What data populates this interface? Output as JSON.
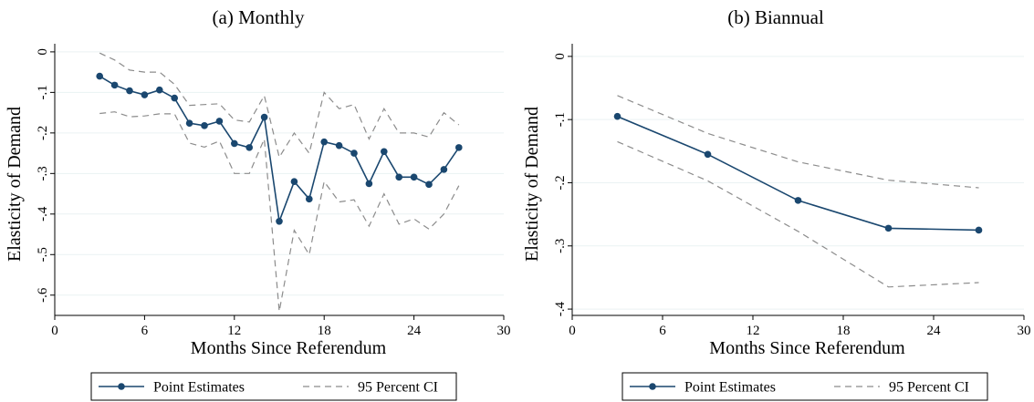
{
  "colors": {
    "series": "#1a476f",
    "ci": "#8c8c8c",
    "grid": "#eaf2f3",
    "axis": "#000000"
  },
  "chart_data": [
    {
      "type": "line",
      "title": "(a) Monthly",
      "xlabel": "Months Since Referendum",
      "ylabel": "Elasticity of Demand",
      "xlim": [
        0,
        30
      ],
      "ylim": [
        -0.65,
        0.02
      ],
      "xticks": [
        0,
        6,
        12,
        18,
        24,
        30
      ],
      "xtick_labels": [
        "0",
        "6",
        "12",
        "18",
        "24",
        "30"
      ],
      "yticks": [
        0,
        -0.1,
        -0.2,
        -0.3,
        -0.4,
        -0.5,
        -0.6
      ],
      "ytick_labels": [
        "0",
        "-.1",
        "-.2",
        "-.3",
        "-.4",
        "-.5",
        "-.6"
      ],
      "grid": true,
      "legend_position": "bottom",
      "legend": [
        "Point Estimates",
        "95 Percent CI"
      ],
      "x": [
        3,
        4,
        5,
        6,
        7,
        8,
        9,
        10,
        11,
        12,
        13,
        14,
        15,
        16,
        17,
        18,
        19,
        20,
        21,
        22,
        23,
        24,
        25,
        26,
        27
      ],
      "series": [
        {
          "name": "Point Estimates",
          "style": "solid-markers",
          "values": [
            -0.06,
            -0.082,
            -0.096,
            -0.106,
            -0.094,
            -0.114,
            -0.176,
            -0.182,
            -0.171,
            -0.226,
            -0.236,
            -0.161,
            -0.418,
            -0.32,
            -0.363,
            -0.222,
            -0.231,
            -0.25,
            -0.325,
            -0.246,
            -0.309,
            -0.309,
            -0.327,
            -0.29,
            -0.236
          ]
        },
        {
          "name": "95 Percent CI",
          "style": "dashed",
          "values": [
            -0.003,
            -0.02,
            -0.045,
            -0.05,
            -0.05,
            -0.08,
            -0.132,
            -0.13,
            -0.128,
            -0.168,
            -0.173,
            -0.108,
            -0.26,
            -0.2,
            -0.25,
            -0.1,
            -0.14,
            -0.13,
            -0.215,
            -0.14,
            -0.2,
            -0.2,
            -0.21,
            -0.15,
            -0.18
          ]
        },
        {
          "name": "95 Percent CI",
          "style": "dashed",
          "values": [
            -0.152,
            -0.148,
            -0.16,
            -0.158,
            -0.153,
            -0.153,
            -0.225,
            -0.235,
            -0.22,
            -0.3,
            -0.3,
            -0.215,
            -0.64,
            -0.44,
            -0.5,
            -0.32,
            -0.37,
            -0.365,
            -0.43,
            -0.35,
            -0.425,
            -0.412,
            -0.437,
            -0.4,
            -0.33
          ]
        }
      ]
    },
    {
      "type": "line",
      "title": "(b) Biannual",
      "xlabel": "Months Since Referendum",
      "ylabel": "Elasticity of Demand",
      "xlim": [
        0,
        30
      ],
      "ylim": [
        -0.41,
        0.02
      ],
      "xticks": [
        0,
        6,
        12,
        18,
        24,
        30
      ],
      "xtick_labels": [
        "0",
        "6",
        "12",
        "18",
        "24",
        "30"
      ],
      "yticks": [
        0,
        -0.1,
        -0.2,
        -0.3,
        -0.4
      ],
      "ytick_labels": [
        "0",
        "-.1",
        "-.2",
        "-.3",
        "-.4"
      ],
      "grid": true,
      "legend_position": "bottom",
      "legend": [
        "Point Estimates",
        "95 Percent CI"
      ],
      "x": [
        3,
        9,
        15,
        21,
        27
      ],
      "series": [
        {
          "name": "Point Estimates",
          "style": "solid-markers",
          "values": [
            -0.095,
            -0.155,
            -0.228,
            -0.272,
            -0.275
          ]
        },
        {
          "name": "95 Percent CI",
          "style": "dashed",
          "values": [
            -0.062,
            -0.122,
            -0.167,
            -0.196,
            -0.208
          ]
        },
        {
          "name": "95 Percent CI",
          "style": "dashed",
          "values": [
            -0.135,
            -0.197,
            -0.277,
            -0.365,
            -0.358
          ]
        }
      ]
    }
  ]
}
